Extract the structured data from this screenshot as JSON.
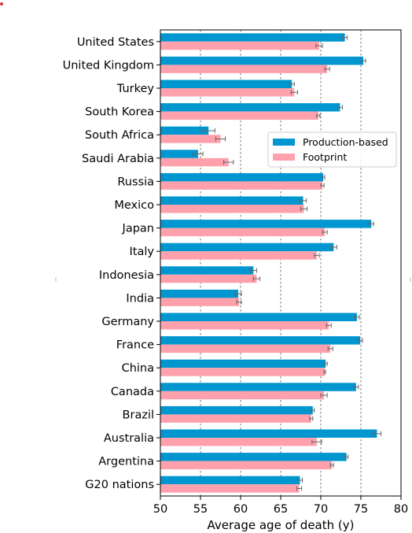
{
  "chart_data": {
    "type": "bar",
    "orientation": "horizontal",
    "categories": [
      "United States",
      "United Kingdom",
      "Turkey",
      "South Korea",
      "South Africa",
      "Saudi Arabia",
      "Russia",
      "Mexico",
      "Japan",
      "Italy",
      "Indonesia",
      "India",
      "Germany",
      "France",
      "China",
      "Canada",
      "Brazil",
      "Australia",
      "Argentina",
      "G20 nations"
    ],
    "series": [
      {
        "name": "Production-based",
        "color": "#0096d0",
        "values": [
          73.0,
          75.3,
          66.4,
          72.4,
          56.0,
          54.7,
          70.3,
          67.8,
          76.3,
          71.6,
          61.6,
          59.7,
          74.5,
          74.9,
          70.6,
          74.4,
          69.0,
          77.0,
          73.2,
          67.4
        ],
        "errors": [
          0.3,
          0.3,
          0.3,
          0.3,
          0.8,
          0.6,
          0.2,
          0.4,
          0.3,
          0.4,
          0.4,
          0.4,
          0.3,
          0.3,
          0.2,
          0.3,
          0.2,
          0.5,
          0.2,
          0.3
        ]
      },
      {
        "name": "Footprint",
        "color": "#ffa1ac",
        "values": [
          69.8,
          70.8,
          66.7,
          69.7,
          57.5,
          58.5,
          70.2,
          67.9,
          70.5,
          69.5,
          62.0,
          59.8,
          71.0,
          71.2,
          70.5,
          70.4,
          68.8,
          69.5,
          71.4,
          67.3
        ],
        "errors": [
          0.4,
          0.3,
          0.4,
          0.2,
          0.6,
          0.6,
          0.2,
          0.4,
          0.3,
          0.3,
          0.4,
          0.3,
          0.3,
          0.3,
          0.1,
          0.4,
          0.2,
          0.6,
          0.2,
          0.3
        ]
      }
    ],
    "xlabel": "Average age of death (y)",
    "ylabel": "",
    "xlim": [
      50,
      80
    ],
    "xticks": [
      "50",
      "55",
      "60",
      "65",
      "70",
      "75",
      "80"
    ],
    "grid": "vertical dashed",
    "legend_position": "right, upper-middle"
  }
}
